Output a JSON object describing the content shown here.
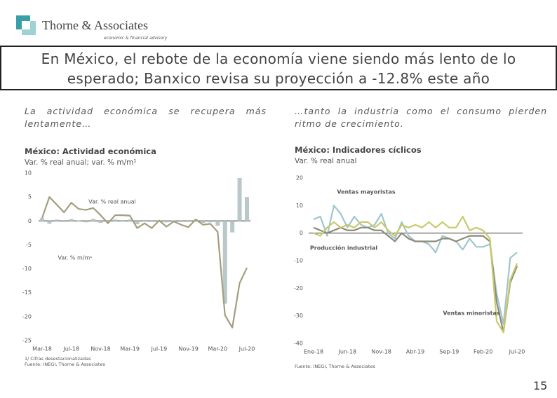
{
  "header": {
    "company": "Thorne & Associates",
    "tagline": "economic & financial advisory",
    "title": "En México, el rebote de la economía viene siendo más lento de lo esperado; Banxico revisa su proyección a -12.8% este año"
  },
  "left_text": "La actividad económica se recupera más lentamente…",
  "right_text": "…tanto la industria como el consumo pierden ritmo de crecimiento.",
  "page_number": "15",
  "chart_data": [
    {
      "type": "combo",
      "title": "México: Actividad económica",
      "subtitle": "Var. % real anual; var. % m/m¹",
      "notes": [
        "1/ Cifras desestacionalizadas",
        "Fuente: INEGI, Thorne & Associates"
      ],
      "categories": [
        "Mar-18",
        null,
        null,
        null,
        "Jul-18",
        null,
        null,
        null,
        "Nov-18",
        null,
        null,
        null,
        "Mar-19",
        null,
        null,
        null,
        "Jul-19",
        null,
        null,
        null,
        "Nov-19",
        null,
        null,
        null,
        "Mar-20",
        null,
        null,
        null,
        "Jul-20"
      ],
      "series": [
        {
          "name": "Var. % m/m¹",
          "type": "bar",
          "color": "#b9c8c9",
          "values": [
            0.6,
            -0.6,
            0.3,
            -0.2,
            0.4,
            0.1,
            -0.3,
            0.4,
            -0.4,
            -0.3,
            0.3,
            0.2,
            0.3,
            -0.7,
            0.2,
            -0.2,
            0.1,
            -0.3,
            0.1,
            -0.2,
            -0.2,
            0.3,
            -0.4,
            -0.3,
            -1.0,
            -17.3,
            -2.4,
            9.0,
            5.0
          ]
        },
        {
          "name": "Var. % real anual",
          "type": "line",
          "color": "#a39e80",
          "values": [
            0.6,
            5.0,
            3.4,
            1.8,
            3.8,
            2.5,
            2.3,
            2.7,
            1.2,
            -0.5,
            1.2,
            1.2,
            1.1,
            -1.5,
            -0.5,
            -1.5,
            0.1,
            -1.2,
            -0.1,
            -0.8,
            -1.3,
            0.3,
            -0.8,
            -0.6,
            -2.3,
            -19.7,
            -22.3,
            -13.0,
            -9.8
          ]
        }
      ],
      "ylim": [
        -25,
        10
      ],
      "yticks": [
        -25,
        -20,
        -15,
        -10,
        -5,
        0,
        5,
        10
      ],
      "grid": false
    },
    {
      "type": "line",
      "title": "México: Indicadores cíclicos",
      "subtitle": "Var. % real anual",
      "notes": [
        "Fuente: INEGI, Thorne & Associates"
      ],
      "categories": [
        "Ene-18",
        null,
        null,
        null,
        null,
        "Jun-18",
        null,
        null,
        null,
        null,
        "Nov-18",
        null,
        null,
        null,
        null,
        "Abr-19",
        null,
        null,
        null,
        null,
        "Sep-19",
        null,
        null,
        null,
        null,
        "Feb-20",
        null,
        null,
        null,
        null,
        "Jul-20"
      ],
      "series": [
        {
          "name": "Ventas mayoristas",
          "type": "line",
          "color": "#9fc6cd",
          "values": [
            5,
            6,
            -1,
            10,
            7,
            2,
            6,
            3,
            2,
            3,
            7,
            0,
            -2,
            4,
            -1,
            -3,
            -3,
            -4,
            -7,
            -1,
            -2,
            -3,
            -6,
            -2,
            -5,
            -5,
            -4,
            -22,
            -33,
            -9,
            -7
          ]
        },
        {
          "name": "Producción industrial",
          "type": "line",
          "color": "#8e8a78",
          "values": [
            2,
            1,
            0,
            1,
            2,
            1,
            1,
            2,
            2,
            1,
            1,
            -1,
            -3,
            0,
            -2,
            -3,
            -3,
            -3,
            -3,
            -2,
            -2,
            -3,
            -2,
            -1,
            -1,
            -1,
            -3,
            -25,
            -36,
            -18,
            -12
          ]
        },
        {
          "name": "Ventas minoristas",
          "type": "line",
          "color": "#c9c96b",
          "values": [
            0,
            -1,
            2,
            4,
            2,
            3,
            2,
            4,
            4,
            2,
            4,
            1,
            -1,
            3,
            2,
            3,
            2,
            4,
            2,
            4,
            2,
            2,
            6,
            1,
            2,
            1,
            -2,
            -32,
            -36,
            -17,
            -11
          ]
        }
      ],
      "ylim": [
        -40,
        20
      ],
      "yticks": [
        -40,
        -30,
        -20,
        -10,
        0,
        10,
        20
      ],
      "grid": false
    }
  ]
}
